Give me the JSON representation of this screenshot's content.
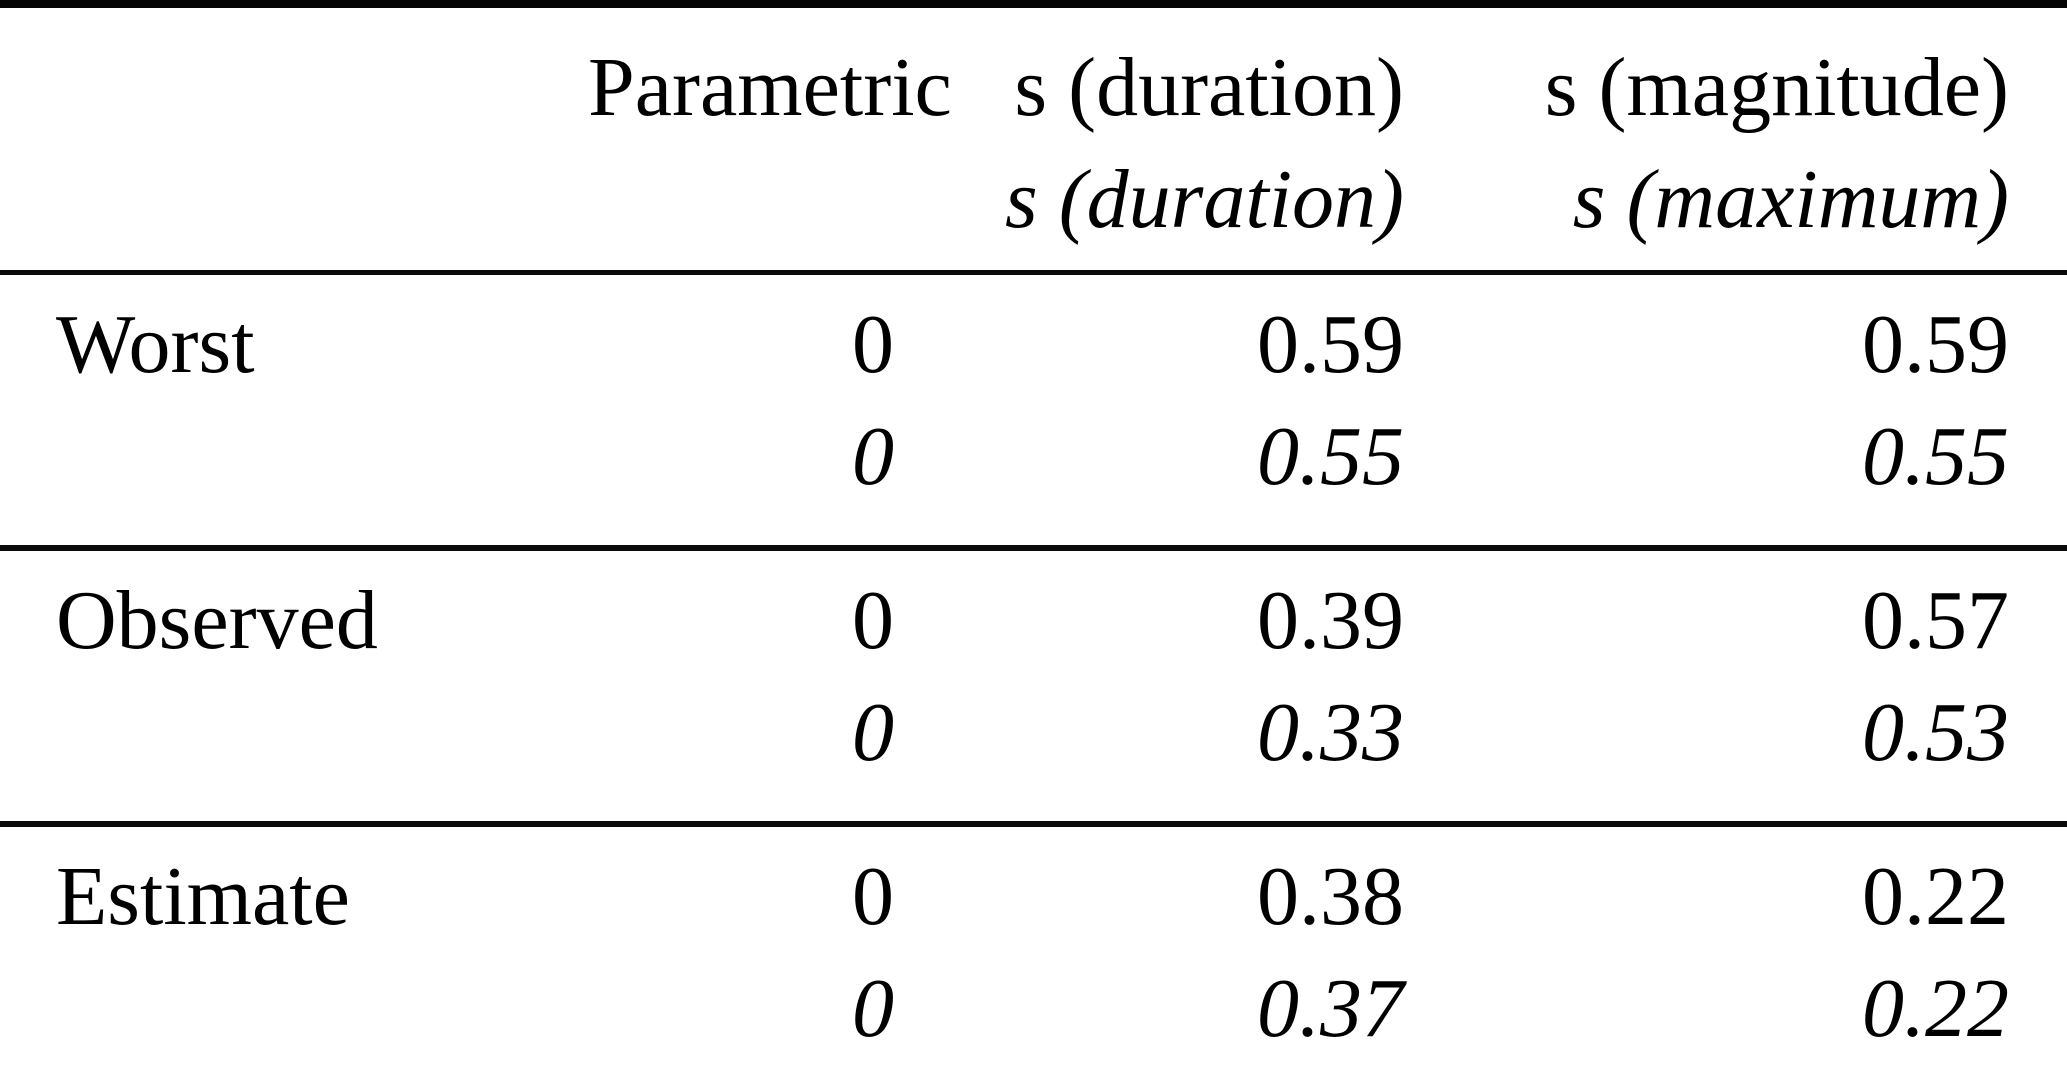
{
  "page": {
    "background": "#ffffff",
    "text_color": "#000000",
    "rule_color": "#050505"
  },
  "table": {
    "header": {
      "label_col": "",
      "parametric": {
        "line1": "Parametric",
        "line2": ""
      },
      "s_duration": {
        "line1": "s (duration)",
        "line2": "s (duration)"
      },
      "s_magnitude": {
        "line1": "s (magnitude)",
        "line2": "s (maximum)"
      }
    },
    "rows": [
      {
        "label": "Worst",
        "parametric": "0",
        "parametric_italic": "0",
        "s_duration": "0.59",
        "s_duration_italic": "0.55",
        "s_magnitude": "0.59",
        "s_magnitude_italic": "0.55"
      },
      {
        "label": "Observed",
        "parametric": "0",
        "parametric_italic": "0",
        "s_duration": "0.39",
        "s_duration_italic": "0.33",
        "s_magnitude": "0.57",
        "s_magnitude_italic": "0.53"
      },
      {
        "label": "Estimate",
        "parametric": "0",
        "parametric_italic": "0",
        "s_duration": "0.38",
        "s_duration_italic": "0.37",
        "s_magnitude": "0.22",
        "s_magnitude_italic": "0.22"
      }
    ]
  },
  "chart_data": {
    "type": "table",
    "title": "",
    "columns": [
      "",
      "Parametric",
      "s (duration) / s (duration)",
      "s (magnitude) / s (maximum)"
    ],
    "rows": [
      {
        "label": "Worst",
        "parametric": [
          0,
          0
        ],
        "s_duration": [
          0.59,
          0.55
        ],
        "s_magnitude": [
          0.59,
          0.55
        ]
      },
      {
        "label": "Observed",
        "parametric": [
          0,
          0
        ],
        "s_duration": [
          0.39,
          0.33
        ],
        "s_magnitude": [
          0.57,
          0.53
        ]
      },
      {
        "label": "Estimate",
        "parametric": [
          0,
          0
        ],
        "s_duration": [
          0.38,
          0.37
        ],
        "s_magnitude": [
          0.22,
          0.22
        ]
      }
    ],
    "notes": "Each cell has a roman (upright) first value and an italic second value"
  }
}
